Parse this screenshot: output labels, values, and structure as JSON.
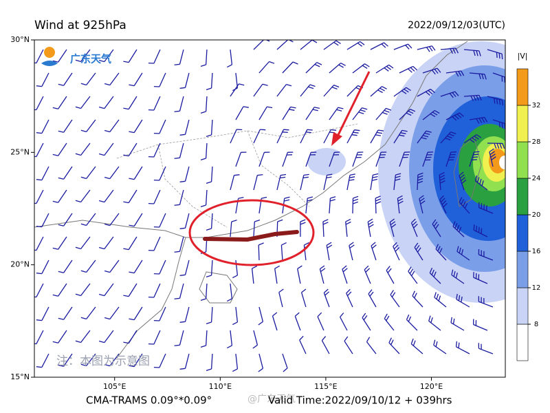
{
  "header": {
    "title": "Wind at 925hPa",
    "time": "2022/09/12/03(UTC)"
  },
  "map": {
    "xlim": [
      101.2,
      123.5
    ],
    "ylim": [
      15,
      30
    ],
    "lat_ticks": [
      {
        "value": 30,
        "label": "30°N"
      },
      {
        "value": 25,
        "label": "25°N"
      },
      {
        "value": 20,
        "label": "20°N"
      },
      {
        "value": 15,
        "label": "15°N"
      }
    ],
    "lon_ticks": [
      {
        "value": 105,
        "label": "105°E"
      },
      {
        "value": 110,
        "label": "110°E"
      },
      {
        "value": 115,
        "label": "115°E"
      },
      {
        "value": 120,
        "label": "120°E"
      }
    ]
  },
  "colorbar": {
    "label": "|V|",
    "ticks": [
      8,
      12,
      16,
      20,
      24,
      28,
      32
    ],
    "colors": [
      "#ffffff",
      "#c9d3f6",
      "#7a9ee8",
      "#2060d8",
      "#2aa040",
      "#90e050",
      "#f0f050",
      "#f39a1a"
    ]
  },
  "watermarks": {
    "logo": "广东天气",
    "note": "注：本图为示意图",
    "weibo": "@广东天气"
  },
  "footer": {
    "model": "CMA-TRAMS 0.09°*0.09°",
    "valid": "Valid Time:2022/09/10/12 + 039hrs"
  }
}
